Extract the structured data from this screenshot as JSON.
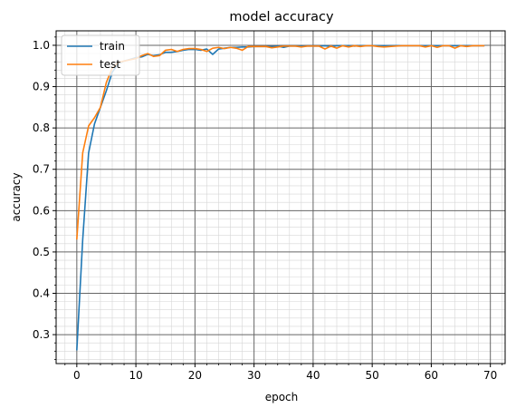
{
  "chart_data": {
    "type": "line",
    "title": "model accuracy",
    "xlabel": "epoch",
    "ylabel": "accuracy",
    "xlim": [
      -3.5,
      72.5
    ],
    "ylim": [
      0.23,
      1.035
    ],
    "x_ticks": [
      0,
      10,
      20,
      30,
      40,
      50,
      60,
      70
    ],
    "x_tick_labels": [
      "0",
      "10",
      "20",
      "30",
      "40",
      "50",
      "60",
      "70"
    ],
    "y_ticks": [
      0.3,
      0.4,
      0.5,
      0.6,
      0.7,
      0.8,
      0.9,
      1.0
    ],
    "y_tick_labels": [
      "0.3",
      "0.4",
      "0.5",
      "0.6",
      "0.7",
      "0.8",
      "0.9",
      "1.0"
    ],
    "grid": {
      "major": true,
      "minor": true
    },
    "legend": {
      "placement": "top-left"
    },
    "series": [
      {
        "name": "train",
        "color": "#1f77b4",
        "x": [
          0,
          1,
          2,
          3,
          4,
          5,
          6,
          7,
          8,
          9,
          10,
          11,
          12,
          13,
          14,
          15,
          16,
          17,
          18,
          19,
          20,
          21,
          22,
          23,
          24,
          25,
          26,
          27,
          28,
          29,
          30,
          31,
          32,
          33,
          34,
          35,
          36,
          37,
          38,
          39,
          40,
          41,
          42,
          43,
          44,
          45,
          46,
          47,
          48,
          49,
          50,
          51,
          52,
          53,
          54,
          55,
          56,
          57,
          58,
          59,
          60,
          61,
          62,
          63,
          64,
          65,
          66,
          67,
          68,
          69
        ],
        "y": [
          0.262,
          0.53,
          0.74,
          0.81,
          0.85,
          0.89,
          0.935,
          0.955,
          0.962,
          0.966,
          0.97,
          0.972,
          0.978,
          0.975,
          0.977,
          0.983,
          0.983,
          0.985,
          0.988,
          0.99,
          0.99,
          0.988,
          0.991,
          0.978,
          0.991,
          0.993,
          0.995,
          0.995,
          0.996,
          0.996,
          0.997,
          0.997,
          0.997,
          0.997,
          0.998,
          0.995,
          0.998,
          0.998,
          0.998,
          0.998,
          0.998,
          0.998,
          0.999,
          0.997,
          0.999,
          0.999,
          0.999,
          0.998,
          0.999,
          0.999,
          0.999,
          0.999,
          0.999,
          0.999,
          0.999,
          0.999,
          0.999,
          0.999,
          0.999,
          0.999,
          0.999,
          0.999,
          0.999,
          0.999,
          0.999,
          0.999,
          0.999,
          0.999,
          0.999,
          0.999
        ]
      },
      {
        "name": "test",
        "color": "#ff7f0e",
        "x": [
          0,
          1,
          2,
          3,
          4,
          5,
          6,
          7,
          8,
          9,
          10,
          11,
          12,
          13,
          14,
          15,
          16,
          17,
          18,
          19,
          20,
          21,
          22,
          23,
          24,
          25,
          26,
          27,
          28,
          29,
          30,
          31,
          32,
          33,
          34,
          35,
          36,
          37,
          38,
          39,
          40,
          41,
          42,
          43,
          44,
          45,
          46,
          47,
          48,
          49,
          50,
          51,
          52,
          53,
          54,
          55,
          56,
          57,
          58,
          59,
          60,
          61,
          62,
          63,
          64,
          65,
          66,
          67,
          68,
          69
        ],
        "y": [
          0.53,
          0.74,
          0.805,
          0.825,
          0.85,
          0.91,
          0.945,
          0.958,
          0.962,
          0.965,
          0.968,
          0.975,
          0.98,
          0.973,
          0.975,
          0.988,
          0.99,
          0.985,
          0.99,
          0.992,
          0.992,
          0.99,
          0.985,
          0.993,
          0.995,
          0.992,
          0.995,
          0.993,
          0.988,
          0.997,
          0.997,
          0.997,
          0.997,
          0.994,
          0.996,
          0.998,
          0.998,
          0.998,
          0.996,
          0.998,
          0.998,
          0.998,
          0.991,
          0.998,
          0.993,
          0.999,
          0.996,
          0.999,
          0.997,
          0.999,
          0.999,
          0.997,
          0.996,
          0.997,
          0.998,
          0.999,
          0.999,
          0.999,
          0.999,
          0.996,
          0.999,
          0.995,
          0.999,
          0.999,
          0.993,
          0.999,
          0.997,
          0.999,
          0.999,
          0.999
        ]
      }
    ]
  }
}
